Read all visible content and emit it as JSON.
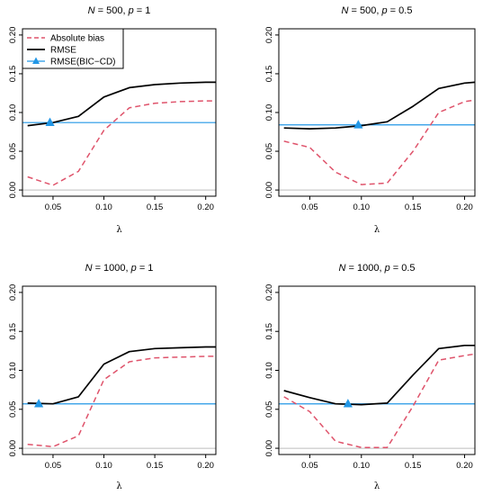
{
  "colors": {
    "bias": "#DF536B",
    "rmse": "#000000",
    "bic": "#2297E6",
    "zero": "#BEBEBE"
  },
  "chart_data": [
    {
      "type": "line",
      "title_parts": [
        "N",
        " = 500, ",
        "p",
        " = 1"
      ],
      "xlabel": "λ",
      "xlim": [
        0.02,
        0.21
      ],
      "ylim": [
        -0.008,
        0.208
      ],
      "xticks": [
        0.05,
        0.1,
        0.15,
        0.2
      ],
      "xtick_labels": [
        "0.05",
        "0.10",
        "0.15",
        "0.20"
      ],
      "yticks": [
        0.0,
        0.05,
        0.1,
        0.15,
        0.2
      ],
      "ytick_labels": [
        "0.00",
        "0.05",
        "0.10",
        "0.15",
        "0.20"
      ],
      "x": [
        0.025,
        0.05,
        0.075,
        0.1,
        0.125,
        0.15,
        0.175,
        0.2,
        0.21
      ],
      "series": [
        {
          "name": "Absolute bias",
          "values": [
            0.017,
            0.006,
            0.024,
            0.077,
            0.106,
            0.112,
            0.114,
            0.115,
            0.115
          ]
        },
        {
          "name": "RMSE",
          "values": [
            0.083,
            0.087,
            0.095,
            0.12,
            0.132,
            0.136,
            0.138,
            0.139,
            0.139
          ]
        }
      ],
      "bic_cd": {
        "name": "RMSE(BIC−CD)",
        "level": 0.087,
        "lambda": 0.047
      },
      "zero_line": 0.0,
      "legend": {
        "position": "top-left",
        "entries": [
          "Absolute bias",
          "RMSE",
          "RMSE(BIC−CD)"
        ]
      }
    },
    {
      "type": "line",
      "title_parts": [
        "N",
        " = 500, ",
        "p",
        " = 0.5"
      ],
      "xlabel": "λ",
      "xlim": [
        0.02,
        0.21
      ],
      "ylim": [
        -0.008,
        0.208
      ],
      "xticks": [
        0.05,
        0.1,
        0.15,
        0.2
      ],
      "xtick_labels": [
        "0.05",
        "0.10",
        "0.15",
        "0.20"
      ],
      "yticks": [
        0.0,
        0.05,
        0.1,
        0.15,
        0.2
      ],
      "ytick_labels": [
        "0.00",
        "0.05",
        "0.10",
        "0.15",
        "0.20"
      ],
      "x": [
        0.025,
        0.05,
        0.075,
        0.1,
        0.125,
        0.15,
        0.175,
        0.2,
        0.21
      ],
      "series": [
        {
          "name": "Absolute bias",
          "values": [
            0.063,
            0.055,
            0.023,
            0.007,
            0.009,
            0.05,
            0.1,
            0.114,
            0.116
          ]
        },
        {
          "name": "RMSE",
          "values": [
            0.08,
            0.079,
            0.08,
            0.083,
            0.088,
            0.108,
            0.131,
            0.138,
            0.139
          ]
        }
      ],
      "bic_cd": {
        "name": "RMSE(BIC−CD)",
        "level": 0.084,
        "lambda": 0.097
      },
      "zero_line": 0.0,
      "legend": null
    },
    {
      "type": "line",
      "title_parts": [
        "N",
        " = 1000, ",
        "p",
        " = 1"
      ],
      "xlabel": "λ",
      "xlim": [
        0.02,
        0.21
      ],
      "ylim": [
        -0.008,
        0.208
      ],
      "xticks": [
        0.05,
        0.1,
        0.15,
        0.2
      ],
      "xtick_labels": [
        "0.05",
        "0.10",
        "0.15",
        "0.20"
      ],
      "yticks": [
        0.0,
        0.05,
        0.1,
        0.15,
        0.2
      ],
      "ytick_labels": [
        "0.00",
        "0.05",
        "0.10",
        "0.15",
        "0.20"
      ],
      "x": [
        0.025,
        0.05,
        0.075,
        0.1,
        0.125,
        0.15,
        0.175,
        0.2,
        0.21
      ],
      "series": [
        {
          "name": "Absolute bias",
          "values": [
            0.005,
            0.002,
            0.016,
            0.088,
            0.111,
            0.116,
            0.117,
            0.118,
            0.118
          ]
        },
        {
          "name": "RMSE",
          "values": [
            0.058,
            0.057,
            0.066,
            0.108,
            0.124,
            0.128,
            0.129,
            0.13,
            0.13
          ]
        }
      ],
      "bic_cd": {
        "name": "RMSE(BIC−CD)",
        "level": 0.057,
        "lambda": 0.036
      },
      "zero_line": 0.0,
      "legend": null
    },
    {
      "type": "line",
      "title_parts": [
        "N",
        " = 1000, ",
        "p",
        " = 0.5"
      ],
      "xlabel": "λ",
      "xlim": [
        0.02,
        0.21
      ],
      "ylim": [
        -0.008,
        0.208
      ],
      "xticks": [
        0.05,
        0.1,
        0.15,
        0.2
      ],
      "xtick_labels": [
        "0.05",
        "0.10",
        "0.15",
        "0.20"
      ],
      "yticks": [
        0.0,
        0.05,
        0.1,
        0.15,
        0.2
      ],
      "ytick_labels": [
        "0.00",
        "0.05",
        "0.10",
        "0.15",
        "0.20"
      ],
      "x": [
        0.025,
        0.05,
        0.075,
        0.1,
        0.125,
        0.15,
        0.175,
        0.2,
        0.21
      ],
      "series": [
        {
          "name": "Absolute bias",
          "values": [
            0.066,
            0.047,
            0.009,
            0.001,
            0.001,
            0.054,
            0.113,
            0.119,
            0.121
          ]
        },
        {
          "name": "RMSE",
          "values": [
            0.074,
            0.065,
            0.057,
            0.056,
            0.058,
            0.094,
            0.128,
            0.132,
            0.132
          ]
        }
      ],
      "bic_cd": {
        "name": "RMSE(BIC−CD)",
        "level": 0.057,
        "lambda": 0.087
      },
      "zero_line": 0.0,
      "legend": null
    }
  ]
}
